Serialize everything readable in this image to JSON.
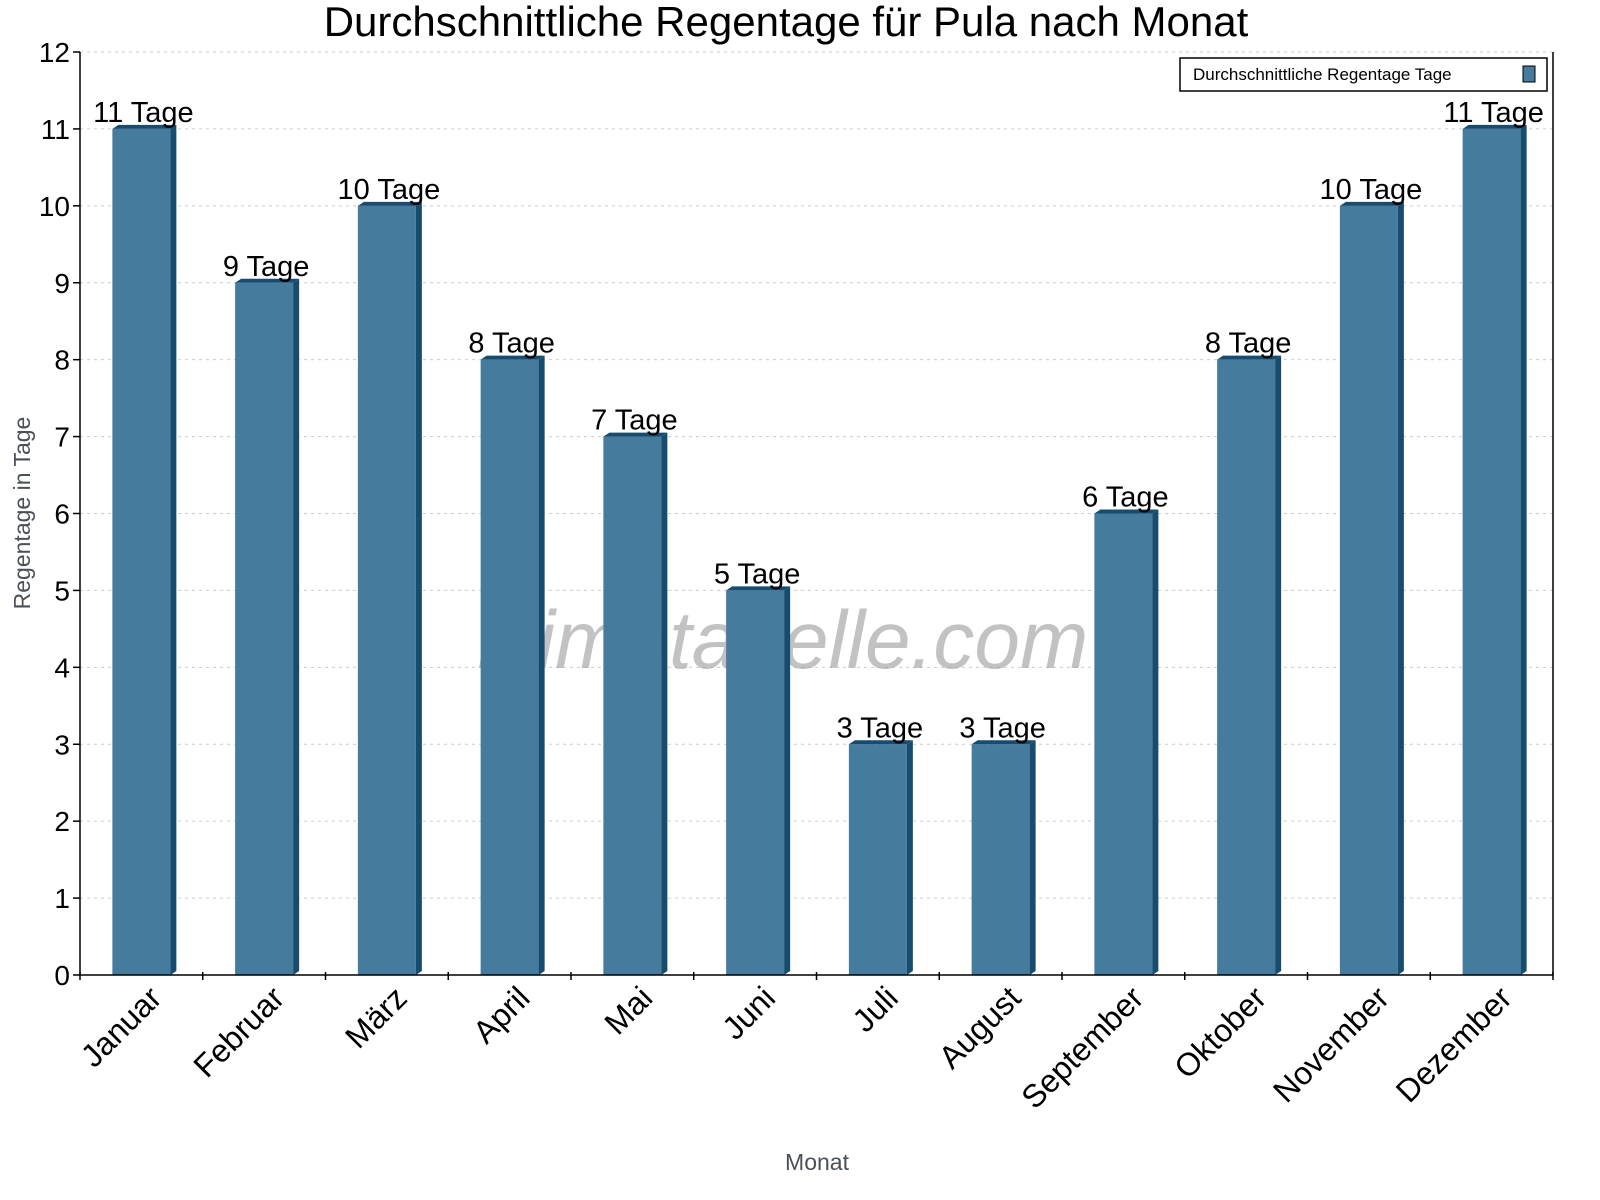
{
  "chart_data": {
    "type": "bar",
    "title": "Durchschnittliche Regentage für Pula nach Monat",
    "xlabel": "Monat",
    "ylabel": "Regentage in Tage",
    "categories": [
      "Januar",
      "Februar",
      "März",
      "April",
      "Mai",
      "Juni",
      "Juli",
      "August",
      "September",
      "Oktober",
      "November",
      "Dezember"
    ],
    "series": [
      {
        "name": "Durchschnittliche Regentage Tage",
        "values": [
          11,
          9,
          10,
          8,
          7,
          5,
          3,
          3,
          6,
          8,
          10,
          11
        ]
      }
    ],
    "data_labels": [
      "11 Tage",
      "9 Tage",
      "10 Tage",
      "8 Tage",
      "7 Tage",
      "5 Tage",
      "3 Tage",
      "3 Tage",
      "6 Tage",
      "8 Tage",
      "10 Tage",
      "11 Tage"
    ],
    "ylim": [
      0,
      12
    ],
    "yticks": [
      0,
      1,
      2,
      3,
      4,
      5,
      6,
      7,
      8,
      9,
      10,
      11,
      12
    ],
    "grid": true,
    "legend_position": "top-right",
    "colors": {
      "bar": "#457b9d",
      "bar_side": "#184c6e",
      "grid": "#cccccc",
      "axis_label": "#4a5058"
    },
    "watermark": "klimatabelle.com"
  }
}
